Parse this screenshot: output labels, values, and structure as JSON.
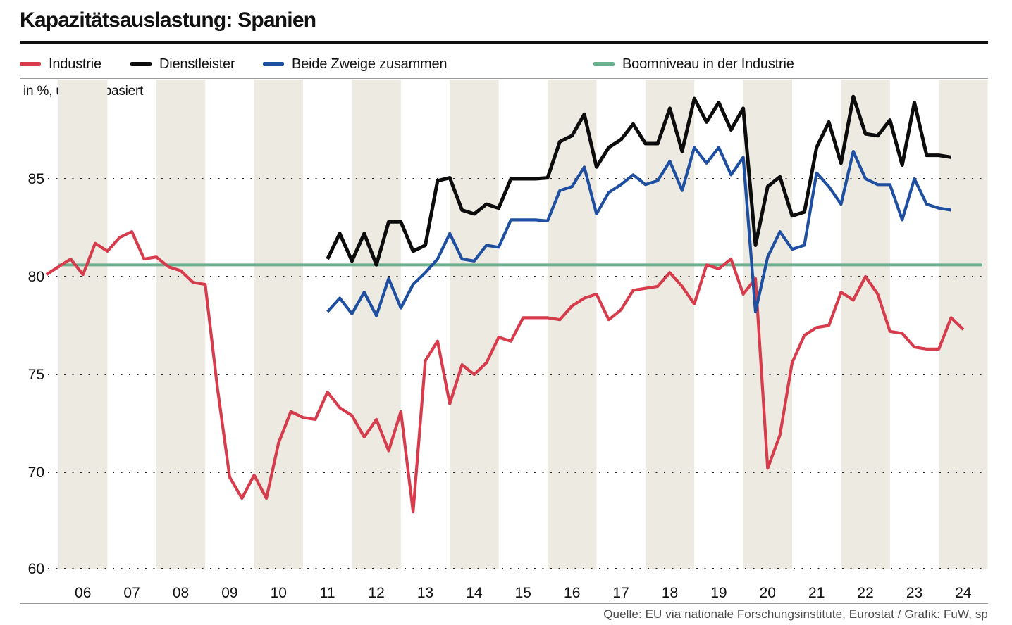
{
  "chart_data": {
    "type": "line",
    "title": "Kapazitätsauslastung: Spanien",
    "subtitle": "in %, umfragebasiert",
    "source": "Quelle: EU via nationale Forschungsinstitute, Eurostat / Grafik: FuW, sp",
    "x_axis": {
      "labels": [
        "06",
        "07",
        "08",
        "09",
        "10",
        "11",
        "12",
        "13",
        "14",
        "15",
        "16",
        "17",
        "18",
        "19",
        "20",
        "21",
        "22",
        "23",
        "24"
      ],
      "start_year": 2006,
      "end_year": 2024,
      "shaded_years": [
        2006,
        2008,
        2010,
        2012,
        2014,
        2016,
        2018,
        2020,
        2022,
        2024
      ]
    },
    "y_axis": {
      "ticks": [
        85,
        80,
        75,
        70,
        60
      ],
      "unit": "%",
      "compressed_below": 70,
      "grid": "dotted"
    },
    "boom_level": 80.6,
    "series": [
      {
        "name": "Industrie",
        "color": "#d63c4c",
        "start": 2005.75,
        "step": 0.25,
        "values": [
          80.1,
          80.5,
          80.9,
          80.1,
          81.7,
          81.3,
          82.0,
          82.3,
          80.9,
          81.0,
          80.5,
          80.3,
          79.7,
          79.6,
          74.3,
          69.5,
          67.3,
          69.7,
          67.3,
          71.5,
          73.1,
          72.8,
          72.7,
          74.1,
          73.3,
          72.9,
          71.8,
          72.7,
          71.1,
          73.1,
          65.9,
          75.7,
          76.7,
          73.5,
          75.5,
          75.0,
          75.6,
          76.9,
          76.7,
          77.9,
          77.9,
          77.9,
          77.8,
          78.5,
          78.9,
          79.1,
          77.8,
          78.3,
          79.3,
          79.4,
          79.5,
          80.2,
          79.5,
          78.6,
          80.6,
          80.4,
          80.9,
          79.1,
          79.9,
          70.2,
          71.9,
          75.6,
          77.0,
          77.4,
          77.5,
          79.2,
          78.8,
          80.0,
          79.1,
          77.2,
          77.1,
          76.4,
          76.3,
          76.3,
          77.9,
          77.3
        ]
      },
      {
        "name": "Dienstleister",
        "color": "#0c0c0c",
        "start": 2011.5,
        "step": 0.25,
        "values": [
          80.9,
          82.2,
          80.8,
          82.2,
          80.6,
          82.8,
          82.8,
          81.3,
          81.6,
          84.9,
          85.05,
          83.4,
          83.2,
          83.7,
          83.5,
          85.0,
          85.0,
          85.0,
          85.05,
          86.9,
          87.2,
          88.3,
          85.6,
          86.6,
          87.0,
          87.8,
          86.8,
          86.8,
          88.6,
          86.4,
          89.1,
          87.9,
          88.9,
          87.5,
          88.6,
          81.6,
          84.6,
          85.1,
          83.1,
          83.3,
          86.6,
          87.9,
          85.8,
          89.2,
          87.3,
          87.2,
          88.0,
          85.7,
          88.9,
          86.2,
          86.2,
          86.1
        ]
      },
      {
        "name": "Beide Zweige zusammen",
        "color": "#1f4fa0",
        "start": 2011.5,
        "step": 0.25,
        "values": [
          78.2,
          78.9,
          78.1,
          79.2,
          78.0,
          79.9,
          78.4,
          79.6,
          80.2,
          80.9,
          82.2,
          80.9,
          80.8,
          81.6,
          81.5,
          82.9,
          82.9,
          82.9,
          82.85,
          84.4,
          84.6,
          85.6,
          83.2,
          84.3,
          84.7,
          85.2,
          84.7,
          84.9,
          85.9,
          84.4,
          86.6,
          85.8,
          86.6,
          85.2,
          86.1,
          78.2,
          81.0,
          82.3,
          81.4,
          81.6,
          85.3,
          84.6,
          83.7,
          86.4,
          85.0,
          84.7,
          84.7,
          82.9,
          85.0,
          83.7,
          83.5,
          83.4
        ]
      },
      {
        "name": "Boomniveau in der Industrie",
        "color": "#68b08e",
        "type": "constant",
        "value": 80.6
      }
    ],
    "legend_offsets": [
      28,
      185,
      373,
      842
    ],
    "theme": {
      "band": "#edeae2",
      "grid_dot": "#222222",
      "axis_text": "#111111",
      "background": "#ffffff"
    }
  }
}
